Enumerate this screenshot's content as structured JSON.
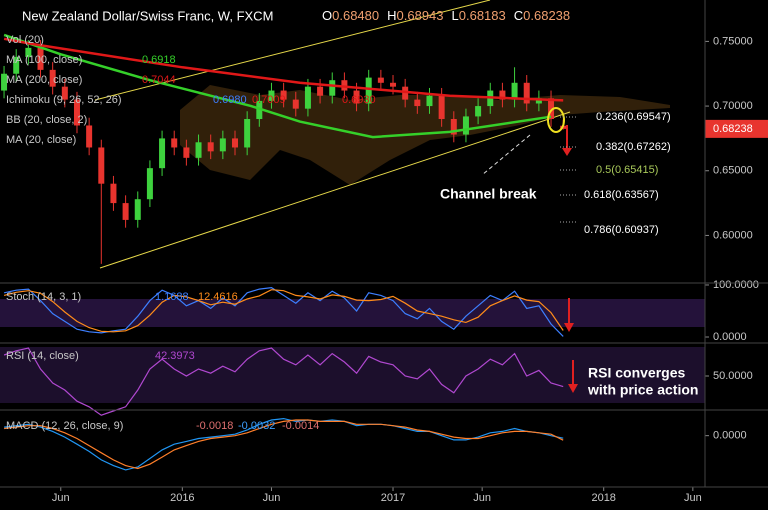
{
  "chart_data": [
    {
      "type": "candlestick",
      "title": "New Zealand Dollar/Swiss Franc, W, FXCM",
      "header_values": [
        {
          "prefix": "O",
          "text": "0.68480"
        },
        {
          "prefix": "H",
          "text": "0.68943"
        },
        {
          "prefix": "L",
          "text": "0.68183"
        },
        {
          "prefix": "C",
          "text": "0.68238"
        }
      ],
      "x": [
        0,
        3,
        6,
        9,
        12,
        15,
        18,
        21,
        24,
        27,
        30,
        33,
        36,
        39,
        42,
        45,
        48,
        51,
        54,
        57,
        60,
        63,
        66,
        69,
        72,
        75,
        78,
        81,
        84,
        87,
        90,
        93,
        96,
        99,
        102,
        105,
        108,
        111,
        114,
        117,
        120,
        123,
        126,
        129,
        132,
        135,
        138
      ],
      "open": [
        0.712,
        0.725,
        0.738,
        0.745,
        0.728,
        0.715,
        0.705,
        0.685,
        0.668,
        0.64,
        0.625,
        0.612,
        0.628,
        0.652,
        0.675,
        0.668,
        0.66,
        0.672,
        0.665,
        0.675,
        0.668,
        0.69,
        0.704,
        0.712,
        0.705,
        0.698,
        0.715,
        0.708,
        0.72,
        0.712,
        0.702,
        0.722,
        0.718,
        0.715,
        0.705,
        0.7,
        0.708,
        0.69,
        0.678,
        0.692,
        0.7,
        0.712,
        0.705,
        0.718,
        0.702,
        0.706,
        0.6848
      ],
      "high": [
        0.731,
        0.744,
        0.751,
        0.751,
        0.734,
        0.721,
        0.711,
        0.691,
        0.674,
        0.646,
        0.631,
        0.634,
        0.658,
        0.681,
        0.681,
        0.674,
        0.678,
        0.678,
        0.681,
        0.681,
        0.696,
        0.71,
        0.718,
        0.718,
        0.711,
        0.721,
        0.721,
        0.726,
        0.726,
        0.718,
        0.728,
        0.728,
        0.724,
        0.721,
        0.711,
        0.714,
        0.714,
        0.696,
        0.698,
        0.706,
        0.718,
        0.718,
        0.73,
        0.724,
        0.712,
        0.712,
        0.68943
      ],
      "low": [
        0.706,
        0.719,
        0.732,
        0.722,
        0.709,
        0.699,
        0.679,
        0.662,
        0.578,
        0.619,
        0.606,
        0.606,
        0.622,
        0.646,
        0.662,
        0.654,
        0.654,
        0.659,
        0.659,
        0.662,
        0.662,
        0.684,
        0.698,
        0.699,
        0.692,
        0.692,
        0.702,
        0.702,
        0.706,
        0.696,
        0.696,
        0.712,
        0.709,
        0.699,
        0.694,
        0.694,
        0.684,
        0.672,
        0.672,
        0.686,
        0.694,
        0.699,
        0.699,
        0.696,
        0.696,
        0.684,
        0.68183
      ],
      "close": [
        0.725,
        0.738,
        0.745,
        0.728,
        0.715,
        0.705,
        0.685,
        0.668,
        0.64,
        0.625,
        0.612,
        0.628,
        0.652,
        0.675,
        0.668,
        0.66,
        0.672,
        0.665,
        0.675,
        0.668,
        0.69,
        0.704,
        0.712,
        0.705,
        0.698,
        0.715,
        0.708,
        0.72,
        0.712,
        0.702,
        0.722,
        0.718,
        0.715,
        0.705,
        0.7,
        0.708,
        0.69,
        0.678,
        0.692,
        0.7,
        0.712,
        0.705,
        0.718,
        0.702,
        0.706,
        0.69,
        0.68238
      ],
      "up_color": "#3ed23e",
      "down_color": "#e8342e",
      "xlim": [
        -1,
        173
      ],
      "ylim": [
        0.564,
        0.782
      ],
      "xticks": [
        {
          "value": 14,
          "label": "Jun"
        },
        {
          "value": 44,
          "label": "2016"
        },
        {
          "value": 66,
          "label": "Jun"
        },
        {
          "value": 96,
          "label": "2017"
        },
        {
          "value": 118,
          "label": "Jun"
        },
        {
          "value": 148,
          "label": "2018"
        },
        {
          "value": 170,
          "label": "Jun"
        }
      ],
      "yticks": [
        {
          "value": 0.75,
          "label": "0.75000"
        },
        {
          "value": 0.7,
          "label": "0.70000"
        },
        {
          "value": 0.65,
          "label": "0.65000"
        },
        {
          "value": 0.6,
          "label": "0.60000"
        }
      ],
      "last_price": {
        "value": 0.68238,
        "label": "0.68238"
      },
      "series": [
        {
          "name": "MA (100, close)",
          "color": "#35d02a",
          "value_label": "0.6918",
          "x": [
            0,
            14,
            36,
            61,
            73,
            91,
            110,
            135
          ],
          "values": [
            0.755,
            0.74,
            0.72,
            0.7,
            0.688,
            0.676,
            0.68,
            0.6918
          ]
        },
        {
          "name": "MA (200, close)",
          "color": "#e01818",
          "value_label": "0.7044",
          "x": [
            0,
            7,
            44,
            73,
            110,
            138
          ],
          "values": [
            0.752,
            0.748,
            0.73,
            0.718,
            0.708,
            0.7044
          ]
        }
      ],
      "indicator_labels": [
        "Vol (20)",
        "Ichimoku (9, 26, 52, 26)",
        "BB (20, close, 2)",
        "MA (20, close)"
      ],
      "ichimoku_values": [
        "0.6980",
        "0.7009",
        "0.6930"
      ],
      "fib_labels": [
        "0.236(0.69547)",
        "0.382(0.67262)",
        "0.5(0.65415)",
        "0.618(0.63567)",
        "0.786(0.60937)"
      ],
      "annotation": "Channel break"
    },
    {
      "type": "line",
      "title": "Stoch (14, 3, 1)",
      "legend_values": [
        "1.1688",
        "12.4616"
      ],
      "x": [
        0,
        3,
        6,
        9,
        12,
        15,
        18,
        21,
        24,
        27,
        30,
        33,
        36,
        39,
        42,
        45,
        48,
        51,
        54,
        57,
        60,
        63,
        66,
        69,
        72,
        75,
        78,
        81,
        84,
        87,
        90,
        93,
        96,
        99,
        102,
        105,
        108,
        111,
        114,
        117,
        120,
        123,
        126,
        129,
        132,
        135,
        138
      ],
      "xlim": [
        -1,
        173
      ],
      "ylim": [
        -11.5,
        103.8
      ],
      "yticks": [
        {
          "value": 100,
          "label": "100.0000"
        },
        {
          "value": 0,
          "label": "0.0000"
        }
      ],
      "series": [
        {
          "color": "#3d7fff",
          "values": [
            85,
            90,
            92,
            70,
            45,
            30,
            15,
            10,
            8,
            12,
            15,
            40,
            70,
            90,
            80,
            60,
            70,
            55,
            75,
            60,
            85,
            92,
            95,
            80,
            65,
            85,
            70,
            88,
            75,
            50,
            85,
            80,
            70,
            45,
            35,
            55,
            30,
            15,
            40,
            60,
            80,
            70,
            88,
            55,
            60,
            25,
            1.1688
          ]
        },
        {
          "color": "#ff8c1a",
          "values": [
            80,
            86,
            89,
            84,
            68,
            48,
            30,
            18,
            11,
            10,
            12,
            22,
            42,
            67,
            80,
            77,
            70,
            62,
            67,
            63,
            73,
            79,
            91,
            89,
            80,
            77,
            73,
            81,
            78,
            71,
            70,
            72,
            78,
            65,
            50,
            45,
            40,
            33,
            28,
            38,
            60,
            70,
            79,
            71,
            68,
            47,
            12.4616
          ]
        }
      ]
    },
    {
      "type": "line",
      "title": "RSI (14, close)",
      "legend_values": [
        "42.3973"
      ],
      "x": [
        0,
        3,
        6,
        9,
        12,
        15,
        18,
        21,
        24,
        27,
        30,
        33,
        36,
        39,
        42,
        45,
        48,
        51,
        54,
        57,
        60,
        63,
        66,
        69,
        72,
        75,
        78,
        81,
        84,
        87,
        90,
        93,
        96,
        99,
        102,
        105,
        108,
        111,
        114,
        117,
        120,
        123,
        126,
        129,
        132,
        135,
        138
      ],
      "xlim": [
        -1,
        173
      ],
      "ylim": [
        25.7,
        73.6
      ],
      "yticks": [
        {
          "value": 50,
          "label": "50.0000"
        }
      ],
      "series": [
        {
          "color": "#b048d0",
          "values": [
            65,
            68,
            70,
            55,
            45,
            40,
            32,
            28,
            22,
            25,
            28,
            40,
            55,
            62,
            55,
            50,
            55,
            52,
            57,
            53,
            62,
            68,
            70,
            62,
            58,
            65,
            58,
            66,
            60,
            52,
            64,
            60,
            58,
            50,
            48,
            55,
            44,
            38,
            50,
            55,
            62,
            58,
            66,
            50,
            54,
            45,
            42.3973
          ]
        }
      ],
      "annotation": [
        "RSI converges",
        "with price action"
      ]
    },
    {
      "type": "line",
      "title": "MACD (12, 26, close, 9)",
      "legend_values": [
        "-0.0018",
        "-0.0032",
        "-0.0014"
      ],
      "x": [
        0,
        3,
        6,
        9,
        12,
        15,
        18,
        21,
        24,
        27,
        30,
        33,
        36,
        39,
        42,
        45,
        48,
        51,
        54,
        57,
        60,
        63,
        66,
        69,
        72,
        75,
        78,
        81,
        84,
        87,
        90,
        93,
        96,
        99,
        102,
        105,
        108,
        111,
        114,
        117,
        120,
        123,
        126,
        129,
        132,
        135,
        138
      ],
      "xlim": [
        -1,
        173
      ],
      "ylim": [
        -0.036,
        0.018
      ],
      "yticks": [
        {
          "value": 0,
          "label": "0.0000"
        }
      ],
      "series": [
        {
          "color": "#2196f3",
          "values": [
            0.006,
            0.007,
            0.008,
            0.006,
            0.003,
            -0.001,
            -0.006,
            -0.011,
            -0.017,
            -0.021,
            -0.024,
            -0.022,
            -0.016,
            -0.01,
            -0.006,
            -0.004,
            -0.002,
            -0.001,
            0.0,
            0.001,
            0.004,
            0.008,
            0.011,
            0.012,
            0.01,
            0.011,
            0.01,
            0.011,
            0.01,
            0.007,
            0.008,
            0.008,
            0.007,
            0.005,
            0.003,
            0.003,
            0.0,
            -0.003,
            -0.003,
            -0.001,
            0.002,
            0.003,
            0.005,
            0.003,
            0.002,
            0.0,
            -0.0018
          ]
        },
        {
          "color": "#ff7f2a",
          "values": [
            0.005,
            0.006,
            0.007,
            0.007,
            0.005,
            0.002,
            -0.002,
            -0.007,
            -0.012,
            -0.017,
            -0.021,
            -0.023,
            -0.02,
            -0.015,
            -0.01,
            -0.007,
            -0.004,
            -0.002,
            -0.001,
            0.0,
            0.002,
            0.005,
            0.008,
            0.01,
            0.011,
            0.011,
            0.01,
            0.01,
            0.01,
            0.008,
            0.008,
            0.008,
            0.007,
            0.006,
            0.004,
            0.003,
            0.001,
            -0.001,
            -0.002,
            -0.002,
            0.0,
            0.002,
            0.003,
            0.003,
            0.002,
            0.001,
            -0.0032
          ]
        }
      ]
    }
  ]
}
